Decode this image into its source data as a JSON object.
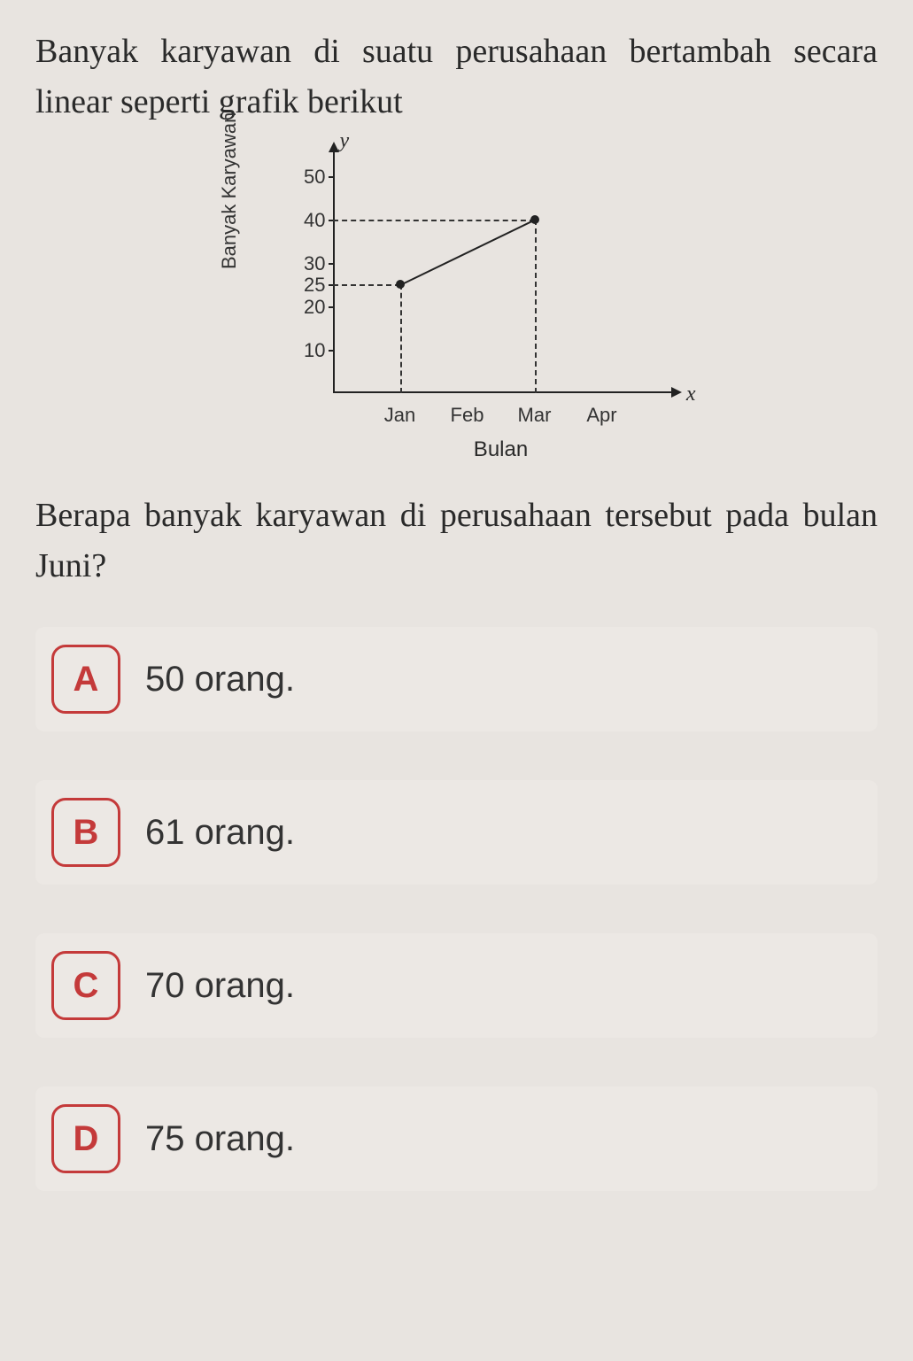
{
  "question": {
    "stem": "Banyak karyawan di suatu perusahaan bertambah secara linear seperti grafik berikut",
    "sub": "Berapa banyak karyawan di perusahaan tersebut pada bulan Juni?"
  },
  "chart": {
    "type": "line",
    "y_label": "Banyak Karyawan",
    "x_label": "Bulan",
    "y_letter": "y",
    "x_letter": "x",
    "y_ticks": [
      10,
      20,
      25,
      30,
      40,
      50
    ],
    "y_tick_labels": [
      "10",
      "20",
      "25",
      "30",
      "40",
      "50"
    ],
    "x_ticks": [
      "Jan",
      "Feb",
      "Mar",
      "Apr"
    ],
    "y_range": [
      0,
      55
    ],
    "x_month_count": 4,
    "points": [
      {
        "x_month": 1,
        "y": 25
      },
      {
        "x_month": 3,
        "y": 40
      }
    ],
    "axis_color": "#222222",
    "text_color": "#333333",
    "background_color": "#e8e4e0"
  },
  "options": [
    {
      "letter": "A",
      "text": "50 orang."
    },
    {
      "letter": "B",
      "text": "61 orang."
    },
    {
      "letter": "C",
      "text": "70 orang."
    },
    {
      "letter": "D",
      "text": "75 orang."
    }
  ],
  "style": {
    "badge_border_color": "#c43a3a",
    "badge_text_color": "#c43a3a",
    "option_bg": "#ece8e4",
    "page_bg": "#e8e4e0"
  }
}
